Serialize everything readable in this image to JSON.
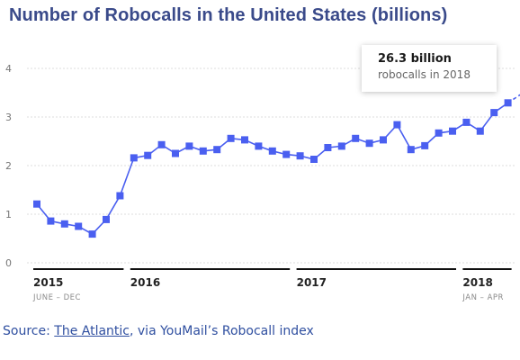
{
  "chart_data": {
    "type": "line",
    "title": "Number of Robocalls in the United States (billions)",
    "ylim": [
      0,
      4
    ],
    "yticks": [
      0,
      1,
      2,
      3,
      4
    ],
    "grid": true,
    "series_color": "#4a5ff0",
    "grid_color": "#dddddd",
    "values": [
      1.21,
      0.86,
      0.8,
      0.75,
      0.59,
      0.89,
      1.38,
      2.16,
      2.21,
      2.43,
      2.25,
      2.4,
      2.3,
      2.33,
      2.56,
      2.53,
      2.4,
      2.3,
      2.23,
      2.2,
      2.13,
      2.37,
      2.4,
      2.56,
      2.46,
      2.53,
      2.84,
      2.33,
      2.41,
      2.67,
      2.71,
      2.89,
      2.71,
      3.09,
      3.29
    ],
    "projection_end": 3.5,
    "year_groups": [
      {
        "label": "2015",
        "range": "JUNE – DEC",
        "start": 0,
        "end": 6
      },
      {
        "label": "2016",
        "range": "",
        "start": 7,
        "end": 18
      },
      {
        "label": "2017",
        "range": "",
        "start": 19,
        "end": 30
      },
      {
        "label": "2018",
        "range": "JAN – APR",
        "start": 31,
        "end": 34
      }
    ],
    "annotation": {
      "strong": "26.3 billion",
      "text": "robocalls in 2018"
    }
  },
  "source": {
    "prefix": "Source: ",
    "link_text": "The Atlantic",
    "suffix": ", via YouMail’s Robocall index"
  }
}
